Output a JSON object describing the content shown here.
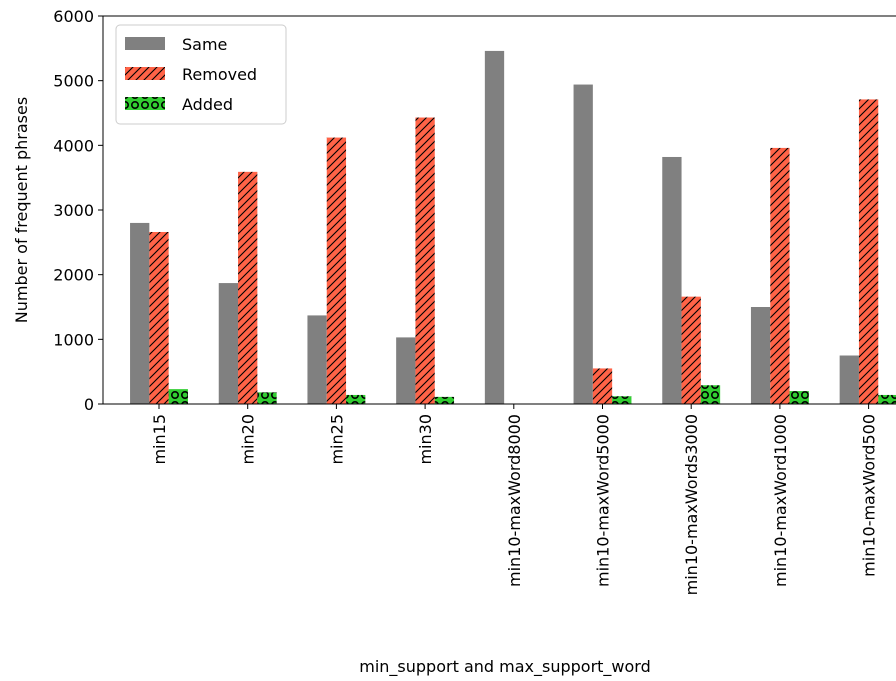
{
  "chart_data": {
    "type": "bar",
    "title": "",
    "xlabel": "min_support and max_support_word",
    "ylabel": "Number of frequent phrases",
    "ylim": [
      0,
      6000
    ],
    "yticks": [
      "0",
      "1000",
      "2000",
      "3000",
      "4000",
      "5000",
      "6000"
    ],
    "grid": false,
    "legend_position": "upper-left",
    "categories": [
      "min15",
      "min20",
      "min25",
      "min30",
      "min10-maxWord8000",
      "min10-maxWord5000",
      "min10-maxWords3000",
      "min10-maxWord1000",
      "min10-maxWord500"
    ],
    "series": [
      {
        "name": "Same",
        "color": "#808080",
        "pattern": "solid",
        "values": [
          2800,
          1870,
          1370,
          1030,
          5460,
          4940,
          3820,
          1500,
          750
        ]
      },
      {
        "name": "Removed",
        "color": "#ff6347",
        "pattern": "diagonal-hatch",
        "values": [
          2660,
          3590,
          4120,
          4430,
          0,
          550,
          1660,
          3960,
          4710
        ]
      },
      {
        "name": "Added",
        "color": "#32cd32",
        "pattern": "circle-hatch",
        "values": [
          230,
          180,
          140,
          110,
          0,
          120,
          290,
          200,
          140
        ]
      }
    ]
  }
}
